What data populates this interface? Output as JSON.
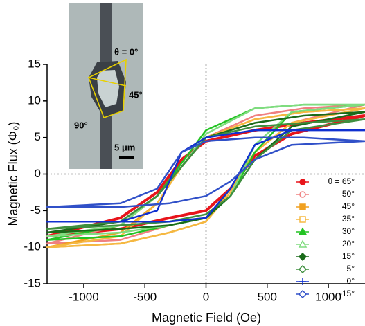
{
  "chart_data": {
    "type": "line",
    "x_label": "Magnetic Field (Oe)",
    "y_label": "Magnetic Flux (Φ₀)",
    "xlim": [
      -1300,
      1300
    ],
    "ylim": [
      -15,
      15
    ],
    "xticks": [
      -1000,
      -500,
      0,
      500,
      1000
    ],
    "yticks": [
      -15,
      -10,
      -5,
      0,
      5,
      10,
      15
    ],
    "zero_lines": true,
    "annotations": [
      "θ = 0°",
      "45°",
      "90°",
      "5 μm"
    ],
    "x": [
      1300,
      800,
      400,
      0,
      -200,
      -400,
      -700,
      -1300,
      -1300,
      -700,
      -300,
      0,
      200,
      400,
      700,
      1300
    ],
    "series": [
      {
        "name": "θ = 65°",
        "color": "#e8141b",
        "marker": "circle",
        "filled": true,
        "values": [
          8,
          7,
          6,
          4.5,
          2,
          -2.5,
          -6,
          -8.5,
          -8.5,
          -7.5,
          -6,
          -5,
          -2,
          2.5,
          5.5,
          8
        ]
      },
      {
        "name": "50°",
        "color": "#f08080",
        "marker": "circle",
        "filled": false,
        "values": [
          9.5,
          9,
          8,
          5,
          1,
          -3,
          -7,
          -9.5,
          -9.5,
          -9,
          -7,
          -6,
          -2,
          3,
          7,
          9.5
        ]
      },
      {
        "name": "45°",
        "color": "#f0a020",
        "marker": "square",
        "filled": true,
        "values": [
          9,
          8.5,
          7.5,
          5,
          1,
          -4,
          -8,
          -10,
          -10,
          -9.5,
          -8,
          -6.5,
          -2,
          3,
          7,
          9
        ]
      },
      {
        "name": "35°",
        "color": "#f5b841",
        "marker": "square",
        "filled": false,
        "values": [
          9,
          8.5,
          7.5,
          5,
          1,
          -4,
          -8.5,
          -10,
          -10,
          -9.5,
          -8,
          -6.5,
          -2.5,
          3,
          7,
          9
        ]
      },
      {
        "name": "30°",
        "color": "#22c322",
        "marker": "triangle",
        "filled": true,
        "values": [
          9.5,
          9.5,
          9,
          6,
          1.5,
          -3,
          -7,
          -9,
          -9,
          -8.5,
          -7,
          -6,
          -3,
          3,
          8.5,
          9.5
        ]
      },
      {
        "name": "20°",
        "color": "#7fdc7f",
        "marker": "triangle",
        "filled": false,
        "values": [
          9.5,
          9.5,
          9,
          5.5,
          1,
          -3,
          -7,
          -8.5,
          -8.5,
          -8,
          -7,
          -6,
          -3,
          4,
          8.5,
          9.5
        ]
      },
      {
        "name": "15°",
        "color": "#1a6b1a",
        "marker": "diamond",
        "filled": true,
        "values": [
          8.5,
          8,
          7,
          5,
          1,
          -3,
          -6.5,
          -8,
          -8,
          -7.5,
          -7,
          -6,
          -3,
          2,
          6.5,
          8.5
        ]
      },
      {
        "name": "5°",
        "color": "#3f8f3f",
        "marker": "diamond",
        "filled": false,
        "values": [
          7.5,
          7,
          6.5,
          5,
          1,
          -3,
          -6.5,
          -7.5,
          -7.5,
          -7,
          -6.5,
          -5.5,
          -3,
          2,
          6,
          7.5
        ]
      },
      {
        "name": "0°",
        "color": "#1030d0",
        "marker": "cross",
        "filled": true,
        "values": [
          6,
          6,
          6,
          5,
          3,
          -5,
          -6.5,
          -6.5,
          -6.5,
          -6.5,
          -6.5,
          -6,
          -2,
          4,
          6,
          6
        ]
      },
      {
        "name": "-15°",
        "color": "#3050c8",
        "marker": "diamond",
        "filled": false,
        "values": [
          4.5,
          5,
          5,
          4.5,
          3,
          -2,
          -4,
          -4.5,
          -4.5,
          -4.5,
          -4,
          -3,
          -1,
          2,
          4,
          4.5
        ]
      }
    ]
  }
}
